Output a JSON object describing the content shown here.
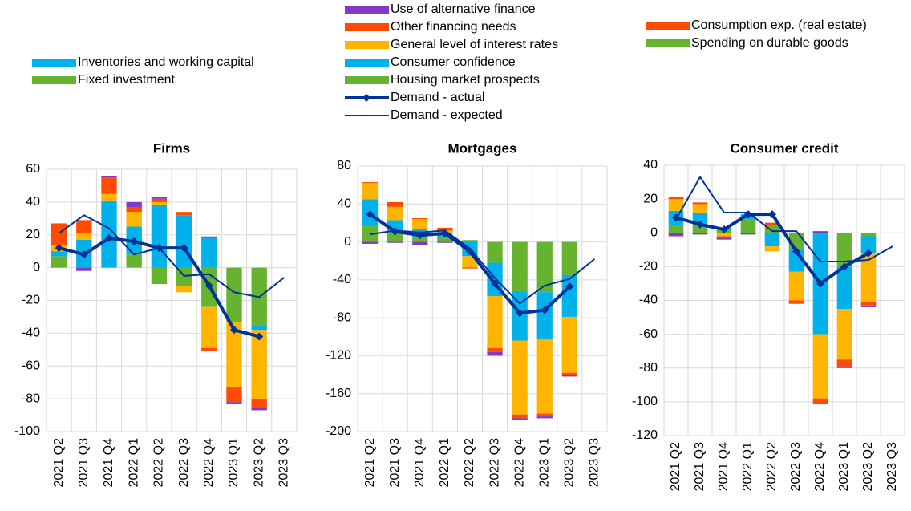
{
  "chart_data": [
    {
      "type": "bar",
      "title": "Firms",
      "categories": [
        "2021 Q2",
        "2021 Q3",
        "2021 Q4",
        "2022 Q1",
        "2022 Q2",
        "2022 Q3",
        "2022 Q4",
        "2023 Q1",
        "2023 Q2",
        "2023 Q3"
      ],
      "ylim": [
        -100,
        60
      ],
      "yticks": [
        -100,
        -80,
        -60,
        -40,
        -20,
        0,
        20,
        40,
        60
      ],
      "grid": true,
      "series": [
        {
          "name": "Fixed investment",
          "color": "#65b32e",
          "values": [
            7,
            0,
            0,
            8,
            -10,
            -11,
            -24,
            -33,
            -35,
            null
          ]
        },
        {
          "name": "Inventories and working capital",
          "color": "#00b1ea",
          "values": [
            3,
            17,
            41,
            17,
            38,
            32,
            18,
            0,
            -3,
            null
          ]
        },
        {
          "color": "#ffb400",
          "values": [
            4,
            4,
            4,
            9,
            2,
            -4,
            -25,
            -40,
            -42,
            null
          ]
        },
        {
          "color": "#ff4b00",
          "values": [
            13,
            8,
            10,
            3,
            2,
            2,
            -2,
            -9,
            -5,
            null
          ]
        },
        {
          "color": "#8139c6",
          "values": [
            0,
            -2,
            1,
            3,
            1,
            0,
            1,
            -1,
            -2,
            null
          ]
        },
        {
          "type": "line",
          "color": "#003299",
          "width": 4,
          "marker": "diamond",
          "values": [
            12,
            8,
            18,
            16,
            12,
            12,
            -11,
            -38,
            -42,
            null
          ]
        },
        {
          "type": "line",
          "color": "#003299",
          "width": 2,
          "values": [
            21,
            32,
            24,
            8,
            12,
            -5,
            -4,
            -15,
            -18,
            -6
          ]
        }
      ]
    },
    {
      "type": "bar",
      "title": "Mortgages",
      "categories": [
        "2021 Q2",
        "2021 Q3",
        "2021 Q4",
        "2022 Q1",
        "2022 Q2",
        "2022 Q3",
        "2022 Q4",
        "2023 Q1",
        "2023 Q2",
        "2023 Q3"
      ],
      "ylim": [
        -200,
        80
      ],
      "yticks": [
        -200,
        -160,
        -120,
        -80,
        -40,
        0,
        40,
        80
      ],
      "grid": true,
      "series": [
        {
          "name": "Housing market prospects",
          "color": "#65b32e",
          "values": [
            18,
            10,
            5,
            5,
            2,
            -22,
            -52,
            -53,
            -35,
            null
          ]
        },
        {
          "name": "Consumer confidence",
          "color": "#00b1ea",
          "values": [
            27,
            13,
            9,
            3,
            -15,
            -35,
            -52,
            -50,
            -44,
            null
          ]
        },
        {
          "name": "General level of interest rates",
          "color": "#ffb400",
          "values": [
            17,
            14,
            10,
            4,
            -12,
            -55,
            -78,
            -78,
            -59,
            null
          ]
        },
        {
          "name": "Other financing needs",
          "color": "#ff4b00",
          "values": [
            1,
            5,
            1,
            3,
            -1,
            -4,
            -4,
            -3,
            -2,
            null
          ]
        },
        {
          "name": "Use of alternative finance",
          "color": "#8139c6",
          "values": [
            -2,
            -1,
            -3,
            -1,
            0,
            -4,
            -2,
            -2,
            -2,
            null
          ]
        },
        {
          "name": "Demand - actual",
          "type": "line",
          "color": "#003299",
          "width": 4,
          "marker": "diamond",
          "values": [
            29,
            11,
            7,
            9,
            -10,
            -44,
            -75,
            -72,
            -47,
            null
          ]
        },
        {
          "name": "Demand - expected",
          "type": "line",
          "color": "#003299",
          "width": 2,
          "values": [
            8,
            12,
            10,
            12,
            -7,
            -38,
            -65,
            -46,
            -39,
            -18
          ]
        }
      ]
    },
    {
      "type": "bar",
      "title": "Consumer credit",
      "categories": [
        "2021 Q2",
        "2021 Q3",
        "2021 Q4",
        "2022 Q1",
        "2022 Q2",
        "2022 Q3",
        "2022 Q4",
        "2023 Q1",
        "2023 Q2",
        "2023 Q3"
      ],
      "ylim": [
        -120,
        40
      ],
      "yticks": [
        -120,
        -100,
        -80,
        -60,
        -40,
        -20,
        0,
        20,
        40
      ],
      "grid": true,
      "series": [
        {
          "name": "Spending on durable goods",
          "color": "#65b32e",
          "values": [
            4,
            5,
            2,
            8,
            4,
            -10,
            0,
            -20,
            -2,
            null
          ]
        },
        {
          "color": "#00b1ea",
          "values": [
            9,
            7,
            1,
            3,
            -8,
            -13,
            -60,
            -25,
            -10,
            null
          ]
        },
        {
          "color": "#ffb400",
          "values": [
            7,
            5,
            -2,
            0,
            -3,
            -17,
            -38,
            -30,
            -29,
            null
          ]
        },
        {
          "name": "Consumption exp. (real estate)",
          "color": "#ff4b00",
          "values": [
            1,
            1,
            -1,
            0,
            2,
            -2,
            -3,
            -4,
            -2,
            null
          ]
        },
        {
          "color": "#8139c6",
          "values": [
            -2,
            -1,
            -1,
            -1,
            0,
            0,
            1,
            -1,
            -1,
            null
          ]
        },
        {
          "type": "line",
          "color": "#003299",
          "width": 4,
          "marker": "diamond",
          "values": [
            9,
            5,
            2,
            11,
            11,
            -11,
            -30,
            -20,
            -12,
            null
          ]
        },
        {
          "type": "line",
          "color": "#003299",
          "width": 2,
          "values": [
            8,
            33,
            12,
            12,
            1,
            1,
            -17,
            -17,
            -16,
            -8
          ]
        }
      ]
    }
  ]
}
